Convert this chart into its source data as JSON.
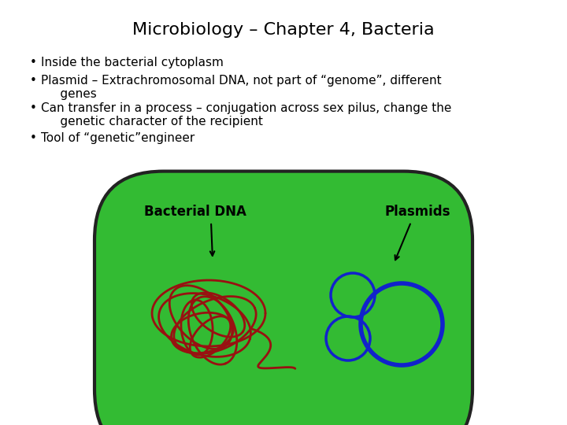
{
  "title": "Microbiology – Chapter 4, Bacteria",
  "title_fontsize": 16,
  "bullet_points": [
    "Inside the bacterial cytoplasm",
    "Plasmid – Extrachromosomal DNA, not part of “genome”, different\n     genes",
    "Can transfer in a process – conjugation across sex pilus, change the\n     genetic character of the recipient",
    "Tool of “genetic”engineer"
  ],
  "bullet_fontsize": 11,
  "bg_color": "#ffffff",
  "cell_fill_outer": "#33bb33",
  "cell_fill_inner": "#44dd44",
  "cell_edge": "#222222",
  "dna_color": "#991111",
  "plasmid_color": "#1122cc",
  "label_font": 11,
  "diagram_label_bacterial_dna": "Bacterial DNA",
  "diagram_label_plasmids": "Plasmids"
}
